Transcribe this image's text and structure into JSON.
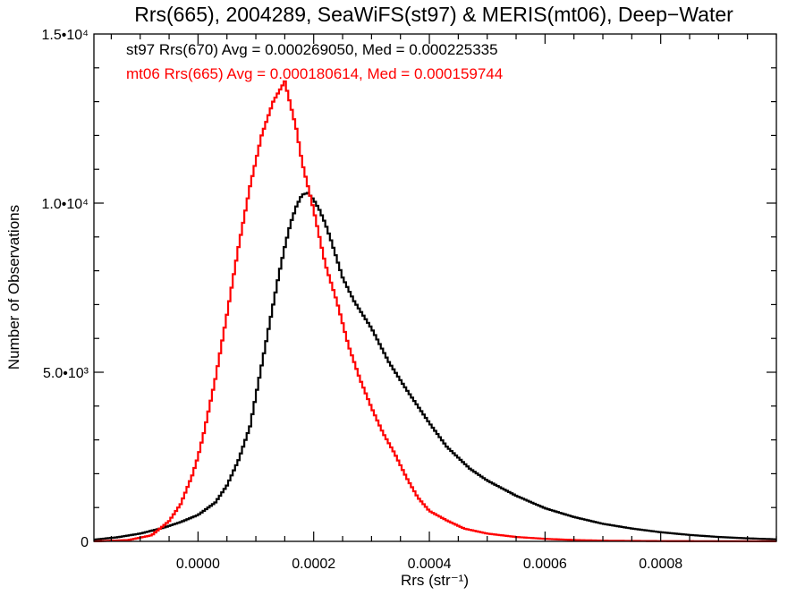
{
  "chart_data": {
    "type": "line",
    "title": "Rrs(665), 2004289, SeaWiFS(st97) & MERIS(mt06), Deep−Water",
    "xlabel": "Rrs (str⁻¹)",
    "ylabel": "Number of Observations",
    "xlim": [
      -0.00018,
      0.001
    ],
    "ylim": [
      0,
      15000
    ],
    "x_ticks": [
      {
        "value": 0.0,
        "label": "0.0000"
      },
      {
        "value": 0.0002,
        "label": "0.0002"
      },
      {
        "value": 0.0004,
        "label": "0.0004"
      },
      {
        "value": 0.0006,
        "label": "0.0006"
      },
      {
        "value": 0.0008,
        "label": "0.0008"
      }
    ],
    "y_ticks": [
      {
        "value": 0,
        "label": "0"
      },
      {
        "value": 5000,
        "label": "5.0•10³"
      },
      {
        "value": 10000,
        "label": "1.0•10⁴"
      },
      {
        "value": 15000,
        "label": "1.5•10⁴"
      }
    ],
    "grid": false,
    "annotations": [
      {
        "text": "st97 Rrs(670) Avg = 0.000269050, Med = 0.000225335",
        "color": "#000000"
      },
      {
        "text": "mt06 Rrs(665) Avg = 0.000180614, Med = 0.000159744",
        "color": "#ff0000"
      }
    ],
    "series": [
      {
        "color": "#000000",
        "points": [
          [
            -0.00018,
            50
          ],
          [
            -0.00014,
            120
          ],
          [
            -0.0001,
            230
          ],
          [
            -6e-05,
            400
          ],
          [
            -3e-05,
            570
          ],
          [
            0.0,
            780
          ],
          [
            3e-05,
            1150
          ],
          [
            5e-05,
            1650
          ],
          [
            7e-05,
            2400
          ],
          [
            9e-05,
            3400
          ],
          [
            0.0001,
            4300
          ],
          [
            0.00011,
            5200
          ],
          [
            0.00012,
            6100
          ],
          [
            0.00013,
            7000
          ],
          [
            0.00014,
            7900
          ],
          [
            0.00015,
            8700
          ],
          [
            0.00016,
            9400
          ],
          [
            0.00017,
            9900
          ],
          [
            0.00018,
            10250
          ],
          [
            0.00019,
            10300
          ],
          [
            0.0002,
            10100
          ],
          [
            0.00021,
            9800
          ],
          [
            0.00022,
            9400
          ],
          [
            0.00023,
            8900
          ],
          [
            0.00024,
            8350
          ],
          [
            0.00025,
            7800
          ],
          [
            0.00027,
            7100
          ],
          [
            0.0003,
            6300
          ],
          [
            0.00033,
            5300
          ],
          [
            0.00036,
            4500
          ],
          [
            0.0004,
            3500
          ],
          [
            0.00043,
            2800
          ],
          [
            0.00047,
            2150
          ],
          [
            0.0005,
            1800
          ],
          [
            0.00055,
            1350
          ],
          [
            0.0006,
            980
          ],
          [
            0.00065,
            720
          ],
          [
            0.0007,
            520
          ],
          [
            0.00075,
            380
          ],
          [
            0.0008,
            270
          ],
          [
            0.00085,
            190
          ],
          [
            0.0009,
            130
          ],
          [
            0.00095,
            90
          ],
          [
            0.001,
            60
          ]
        ]
      },
      {
        "color": "#ff0000",
        "points": [
          [
            -0.00018,
            0
          ],
          [
            -0.00012,
            40
          ],
          [
            -8e-05,
            180
          ],
          [
            -5e-05,
            600
          ],
          [
            -3e-05,
            1100
          ],
          [
            -1e-05,
            1950
          ],
          [
            0.0,
            2500
          ],
          [
            1e-05,
            3200
          ],
          [
            3e-05,
            4800
          ],
          [
            5e-05,
            6700
          ],
          [
            7e-05,
            8700
          ],
          [
            9e-05,
            10500
          ],
          [
            0.00011,
            12000
          ],
          [
            0.00013,
            13000
          ],
          [
            0.00014,
            13300
          ],
          [
            0.00015,
            13600
          ],
          [
            0.00016,
            12900
          ],
          [
            0.00017,
            12200
          ],
          [
            0.00018,
            11200
          ],
          [
            0.0002,
            9800
          ],
          [
            0.00022,
            8200
          ],
          [
            0.00024,
            7100
          ],
          [
            0.00026,
            5800
          ],
          [
            0.00028,
            4800
          ],
          [
            0.0003,
            3950
          ],
          [
            0.00032,
            3200
          ],
          [
            0.00034,
            2600
          ],
          [
            0.00036,
            1900
          ],
          [
            0.00038,
            1300
          ],
          [
            0.0004,
            900
          ],
          [
            0.00043,
            620
          ],
          [
            0.00046,
            380
          ],
          [
            0.0005,
            230
          ],
          [
            0.00055,
            130
          ],
          [
            0.0006,
            75
          ],
          [
            0.00065,
            40
          ],
          [
            0.0007,
            20
          ],
          [
            0.0008,
            8
          ],
          [
            0.0009,
            4
          ],
          [
            0.001,
            2
          ]
        ]
      }
    ]
  }
}
